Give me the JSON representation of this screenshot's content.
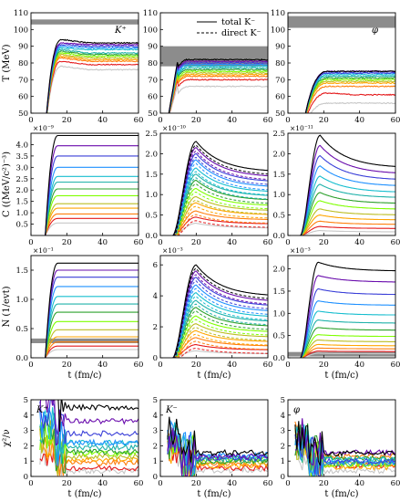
{
  "chart_data": {
    "type": "line",
    "legend": {
      "entries": [
        {
          "label": "total K⁻",
          "style": "solid",
          "color": "#000000"
        },
        {
          "label": "direct K⁻",
          "style": "dashed",
          "color": "#000000"
        }
      ],
      "placement": "top-center"
    },
    "color_scale": [
      "#000000",
      "#6a0dad",
      "#3a3fd8",
      "#1e90ff",
      "#17becf",
      "#20b2aa",
      "#2ca02c",
      "#7fff00",
      "#bcbd22",
      "#ffa500",
      "#ff7f0e",
      "#e41a1c",
      "#c7c7c7"
    ],
    "x_axis": {
      "label": "t (fm/c)",
      "range": [
        0,
        60
      ],
      "ticks": [
        "0",
        "20",
        "40",
        "60"
      ]
    },
    "rows": [
      {
        "id": "temperature",
        "ylabel": "T (MeV)",
        "yticks": [
          "50",
          "60",
          "70",
          "80",
          "90",
          "100",
          "110"
        ],
        "ylim": [
          50,
          110
        ],
        "panels": [
          {
            "species": "K⁺",
            "label": "K⁺",
            "band": [
              103,
              106
            ],
            "shape": "saturating",
            "onset": 8,
            "peak_t": 17,
            "lows": [
              92,
              89,
              88,
              87,
              86,
              84,
              83,
              82,
              81,
              80,
              78,
              76,
              74
            ],
            "highs": [
              94,
              92,
              91,
              90,
              89,
              88,
              87,
              86,
              85,
              84,
              83,
              81,
              78
            ],
            "finals": [
              92,
              91,
              90,
              89,
              88,
              86,
              85,
              84,
              83,
              82,
              81,
              79,
              76
            ]
          },
          {
            "species": "K⁻",
            "band": [
              78,
              90
            ],
            "shape": "peak_then_rise",
            "onset": 4,
            "peak_t": 10,
            "lows": [
              80,
              79,
              78,
              77,
              76,
              74,
              72,
              71,
              70,
              69,
              67,
              65,
              60
            ],
            "highs": [
              80,
              79,
              78,
              77,
              76,
              75,
              74,
              73,
              72,
              71,
              70,
              68,
              64
            ],
            "finals": [
              80,
              79,
              78,
              77,
              76,
              75,
              74,
              73,
              72,
              71,
              70,
              68,
              62
            ]
          },
          {
            "species": "φ",
            "label": "φ",
            "band": [
              101,
              108
            ],
            "shape": "saturating_late",
            "onset": 8,
            "peak_t": 22,
            "lows": [
              76,
              75,
              74,
              73,
              72,
              72,
              71,
              70,
              69,
              67,
              65,
              60,
              55
            ],
            "highs": [
              75,
              75,
              74,
              74,
              73,
              72,
              71,
              70,
              69,
              68,
              66,
              62,
              56
            ],
            "finals": [
              75,
              75,
              74,
              74,
              73,
              72,
              71,
              70,
              69,
              68,
              66,
              61,
              56
            ]
          }
        ]
      },
      {
        "id": "yield_c",
        "ylabel": "C ((MeV/c²)⁻³)",
        "panels": [
          {
            "multiplier": "×10⁻⁹",
            "yticks": [
              "0.5",
              "1.0",
              "1.5",
              "2.0",
              "2.5",
              "3.0",
              "3.5",
              "4.0"
            ],
            "ylim": [
              0,
              4.5
            ],
            "shape": "saturating",
            "onset": 8,
            "peak_t": 15,
            "finals": [
              4.4,
              3.95,
              3.5,
              3.0,
              2.6,
              2.35,
              2.05,
              1.75,
              1.4,
              1.2,
              0.95,
              0.75,
              0.55
            ]
          },
          {
            "multiplier": "×10⁻¹⁰",
            "yticks": [
              "0.0",
              "0.5",
              "1.0",
              "1.5",
              "2.0",
              "2.5"
            ],
            "ylim": [
              0,
              2.5
            ],
            "shape": "peak_then_decay",
            "onset": 7,
            "peak_t": 20,
            "peaks": [
              2.3,
              2.15,
              2.0,
              1.85,
              1.65,
              1.5,
              1.35,
              1.15,
              0.95,
              0.8,
              0.6,
              0.45,
              0.3
            ],
            "finals": [
              1.55,
              1.42,
              1.3,
              1.17,
              1.05,
              0.95,
              0.85,
              0.72,
              0.6,
              0.5,
              0.38,
              0.28,
              0.18
            ],
            "dashed": true
          },
          {
            "multiplier": "×10⁻¹¹",
            "yticks": [
              "0.0",
              "0.5",
              "1.0",
              "1.5",
              "2.0",
              "2.5"
            ],
            "ylim": [
              0,
              2.5
            ],
            "shape": "peak_then_decay",
            "onset": 7,
            "peak_t": 18,
            "peaks": [
              2.45,
              2.2,
              1.95,
              1.7,
              1.45,
              1.25,
              1.05,
              0.85,
              0.65,
              0.5,
              0.35,
              0.22,
              0.12
            ],
            "finals": [
              1.65,
              1.5,
              1.35,
              1.2,
              1.05,
              0.92,
              0.78,
              0.64,
              0.5,
              0.38,
              0.27,
              0.17,
              0.09
            ]
          }
        ]
      },
      {
        "id": "yield_n",
        "ylabel": "N (1/evt)",
        "panels": [
          {
            "multiplier": "×10⁻¹",
            "yticks": [
              "0.0",
              "0.5",
              "1.0",
              "1.5"
            ],
            "ylim": [
              0,
              1.75
            ],
            "band": [
              0.25,
              0.33
            ],
            "shape": "saturating",
            "onset": 8,
            "peak_t": 15,
            "finals": [
              1.62,
              1.5,
              1.38,
              1.22,
              1.05,
              0.92,
              0.78,
              0.62,
              0.48,
              0.36,
              0.27,
              0.2,
              0.14
            ]
          },
          {
            "multiplier": "×10⁻³",
            "yticks": [
              "0",
              "2",
              "4",
              "6"
            ],
            "ylim": [
              0,
              6.6
            ],
            "shape": "peak_then_decay",
            "onset": 7,
            "peak_t": 20,
            "peaks": [
              6.0,
              5.6,
              5.2,
              4.7,
              4.2,
              3.7,
              3.25,
              2.7,
              2.2,
              1.75,
              1.3,
              0.85,
              0.45
            ],
            "finals": [
              3.95,
              3.6,
              3.3,
              2.95,
              2.6,
              2.3,
              2.0,
              1.65,
              1.32,
              1.02,
              0.75,
              0.5,
              0.26
            ],
            "dashed": true
          },
          {
            "multiplier": "×10⁻³",
            "yticks": [
              "0.0",
              "0.5",
              "1.0",
              "1.5",
              "2.0"
            ],
            "ylim": [
              0,
              2.3
            ],
            "band": [
              0.03,
              0.13
            ],
            "shape": "peak_then_decay",
            "onset": 7,
            "peak_t": 17,
            "peaks": [
              2.15,
              1.85,
              1.55,
              1.28,
              1.05,
              0.85,
              0.68,
              0.52,
              0.4,
              0.3,
              0.22,
              0.15,
              0.1
            ],
            "finals": [
              1.95,
              1.7,
              1.42,
              1.18,
              0.96,
              0.78,
              0.62,
              0.48,
              0.36,
              0.27,
              0.2,
              0.14,
              0.09
            ]
          }
        ]
      },
      {
        "id": "chi2",
        "ylabel": "χ²/ν",
        "yticks": [
          "0",
          "1",
          "2",
          "3",
          "4",
          "5"
        ],
        "ylim": [
          0,
          5
        ],
        "panels": [
          {
            "species": "K⁺",
            "label": "K⁺",
            "shape": "noisy",
            "onset": 5,
            "peak_t": 14,
            "finals": [
              4.5,
              3.6,
              2.8,
              2.2,
              2.2,
              1.9,
              1.6,
              1.5,
              1.3,
              1.1,
              0.9,
              0.55,
              0.35
            ]
          },
          {
            "species": "K⁻",
            "label": "K⁻",
            "shape": "noisy",
            "onset": 4,
            "peak_t": 12,
            "finals": [
              1.55,
              1.3,
              1.2,
              1.4,
              1.25,
              1.1,
              1.0,
              1.15,
              0.95,
              0.7,
              0.8,
              0.55,
              0.4
            ]
          },
          {
            "species": "φ",
            "label": "φ",
            "shape": "noisy",
            "onset": 4,
            "peak_t": 12,
            "finals": [
              1.5,
              1.55,
              1.0,
              0.95,
              1.1,
              0.85,
              1.2,
              0.8,
              0.9,
              0.6,
              1.3,
              0.7,
              0.35
            ]
          }
        ]
      }
    ]
  }
}
